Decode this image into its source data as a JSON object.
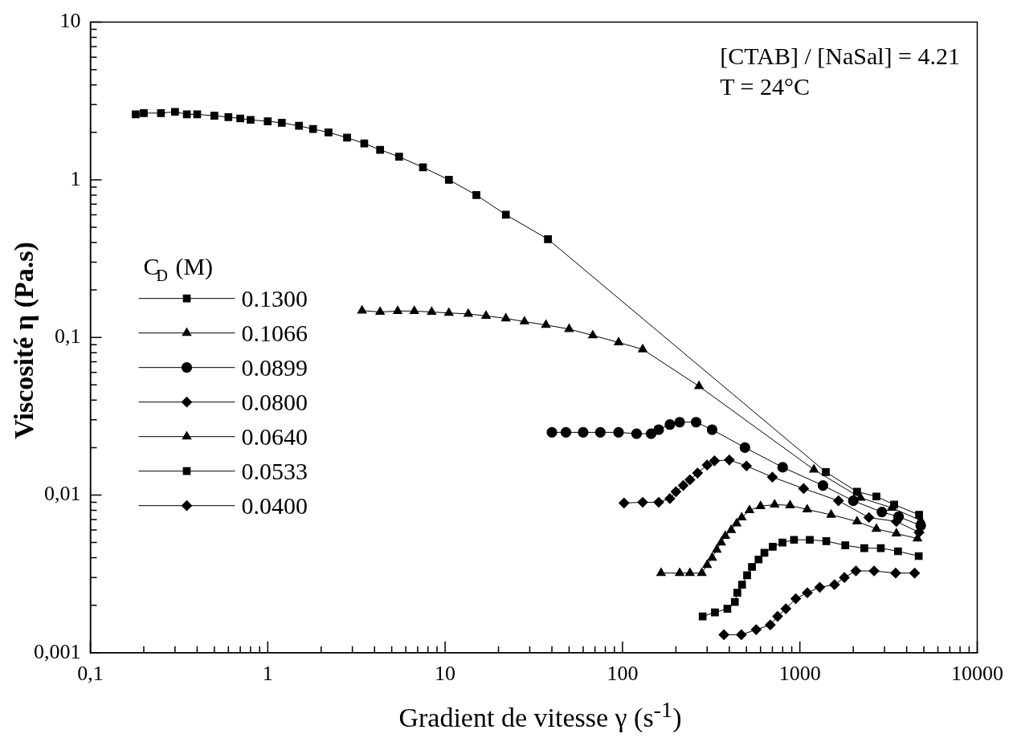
{
  "chart_data": {
    "type": "line",
    "xlabel": "Gradient de vitesse γ  (s$^{-1}$)",
    "ylabel": "Viscosité  η    (Pa.s)",
    "legend_title": "C$_{D}$ (M)",
    "legend": "left",
    "log": "xy",
    "grid": false,
    "line_style": "solid",
    "annotations": [
      "[CTAB] / [NaSal] = 4.21",
      "T = 24°C"
    ],
    "xlim": [
      0.1,
      10000
    ],
    "ylim": [
      0.001,
      10
    ],
    "xticks": [
      {
        "value": 0.1,
        "label": "0,1"
      },
      1,
      10,
      100,
      1000,
      10000
    ],
    "yticks": [
      {
        "value": 0.001,
        "label": "0,001"
      },
      {
        "value": 0.01,
        "label": "0,01"
      },
      {
        "value": 0.1,
        "label": "0,1"
      },
      1,
      10
    ],
    "series": [
      {
        "name": "0.1300",
        "color": "#000000",
        "marker": "square",
        "x": [
          0.18,
          0.2,
          0.25,
          0.3,
          0.35,
          0.4,
          0.5,
          0.6,
          0.7,
          0.8,
          1.0,
          1.2,
          1.5,
          1.8,
          2.2,
          2.8,
          3.5,
          4.3,
          5.5,
          7.5,
          10.5,
          15,
          22,
          38,
          1400,
          2100,
          2700,
          3400,
          4700
        ],
        "values": [
          2.6,
          2.65,
          2.65,
          2.7,
          2.6,
          2.6,
          2.55,
          2.5,
          2.45,
          2.4,
          2.35,
          2.3,
          2.2,
          2.1,
          2.0,
          1.85,
          1.7,
          1.55,
          1.4,
          1.2,
          1.0,
          0.8,
          0.6,
          0.42,
          0.014,
          0.0105,
          0.0098,
          0.0087,
          0.0075
        ]
      },
      {
        "name": "0.1066",
        "color": "#000000",
        "marker": "triangle",
        "x": [
          3.4,
          4.3,
          5.4,
          6.7,
          8.4,
          10.5,
          13.5,
          17,
          22,
          28,
          37,
          50,
          68,
          95,
          130,
          270,
          1200,
          2200,
          3300,
          4800
        ],
        "values": [
          0.148,
          0.145,
          0.147,
          0.147,
          0.145,
          0.143,
          0.141,
          0.137,
          0.132,
          0.126,
          0.12,
          0.113,
          0.103,
          0.093,
          0.084,
          0.049,
          0.0145,
          0.0096,
          0.0083,
          0.0069
        ]
      },
      {
        "name": "0.0899",
        "color": "#000000",
        "marker": "circle",
        "x": [
          40,
          48,
          60,
          75,
          95,
          120,
          145,
          160,
          185,
          210,
          260,
          320,
          490,
          800,
          1350,
          2000,
          2900,
          3600,
          4800
        ],
        "values": [
          0.025,
          0.025,
          0.025,
          0.025,
          0.025,
          0.0245,
          0.0245,
          0.026,
          0.028,
          0.029,
          0.029,
          0.026,
          0.02,
          0.015,
          0.0115,
          0.0092,
          0.0078,
          0.0073,
          0.0064
        ]
      },
      {
        "name": "0.0800",
        "color": "#000000",
        "marker": "diamond",
        "x": [
          102,
          130,
          160,
          185,
          200,
          220,
          240,
          265,
          300,
          330,
          400,
          500,
          700,
          1050,
          1650,
          2450,
          3500,
          4700
        ],
        "values": [
          0.0089,
          0.009,
          0.009,
          0.0095,
          0.0105,
          0.0115,
          0.0125,
          0.0138,
          0.0155,
          0.0165,
          0.0167,
          0.0153,
          0.013,
          0.011,
          0.0092,
          0.0072,
          0.0068,
          0.0058
        ]
      },
      {
        "name": "0.0640",
        "color": "#000000",
        "marker": "triangle",
        "x": [
          165,
          210,
          240,
          280,
          300,
          320,
          340,
          360,
          380,
          410,
          440,
          470,
          520,
          600,
          720,
          880,
          1100,
          1500,
          2100,
          2700,
          3500,
          4600
        ],
        "values": [
          0.0032,
          0.0032,
          0.0032,
          0.0032,
          0.0036,
          0.004,
          0.0045,
          0.005,
          0.0055,
          0.006,
          0.0066,
          0.0072,
          0.008,
          0.0085,
          0.0087,
          0.0086,
          0.0081,
          0.0075,
          0.0068,
          0.0061,
          0.0057,
          0.0053
        ]
      },
      {
        "name": "0.0533",
        "color": "#000000",
        "marker": "square",
        "x": [
          283,
          332,
          390,
          430,
          444,
          472,
          504,
          537,
          585,
          631,
          703,
          798,
          927,
          1137,
          1409,
          1803,
          2307,
          2860,
          3574,
          4677
        ],
        "values": [
          0.0017,
          0.0018,
          0.0019,
          0.0021,
          0.0024,
          0.0027,
          0.0031,
          0.0035,
          0.0039,
          0.0043,
          0.0047,
          0.005,
          0.0052,
          0.0052,
          0.0051,
          0.0048,
          0.0046,
          0.0046,
          0.0044,
          0.0041
        ]
      },
      {
        "name": "0.0400",
        "color": "#000000",
        "marker": "diamond",
        "x": [
          373,
          468,
          567,
          681,
          749,
          834,
          948,
          1102,
          1294,
          1568,
          1782,
          2070,
          2621,
          3467,
          4436
        ],
        "values": [
          0.0013,
          0.0013,
          0.0014,
          0.0015,
          0.0017,
          0.0019,
          0.0022,
          0.0024,
          0.0026,
          0.0027,
          0.003,
          0.0033,
          0.0033,
          0.0032,
          0.0032
        ]
      }
    ]
  }
}
